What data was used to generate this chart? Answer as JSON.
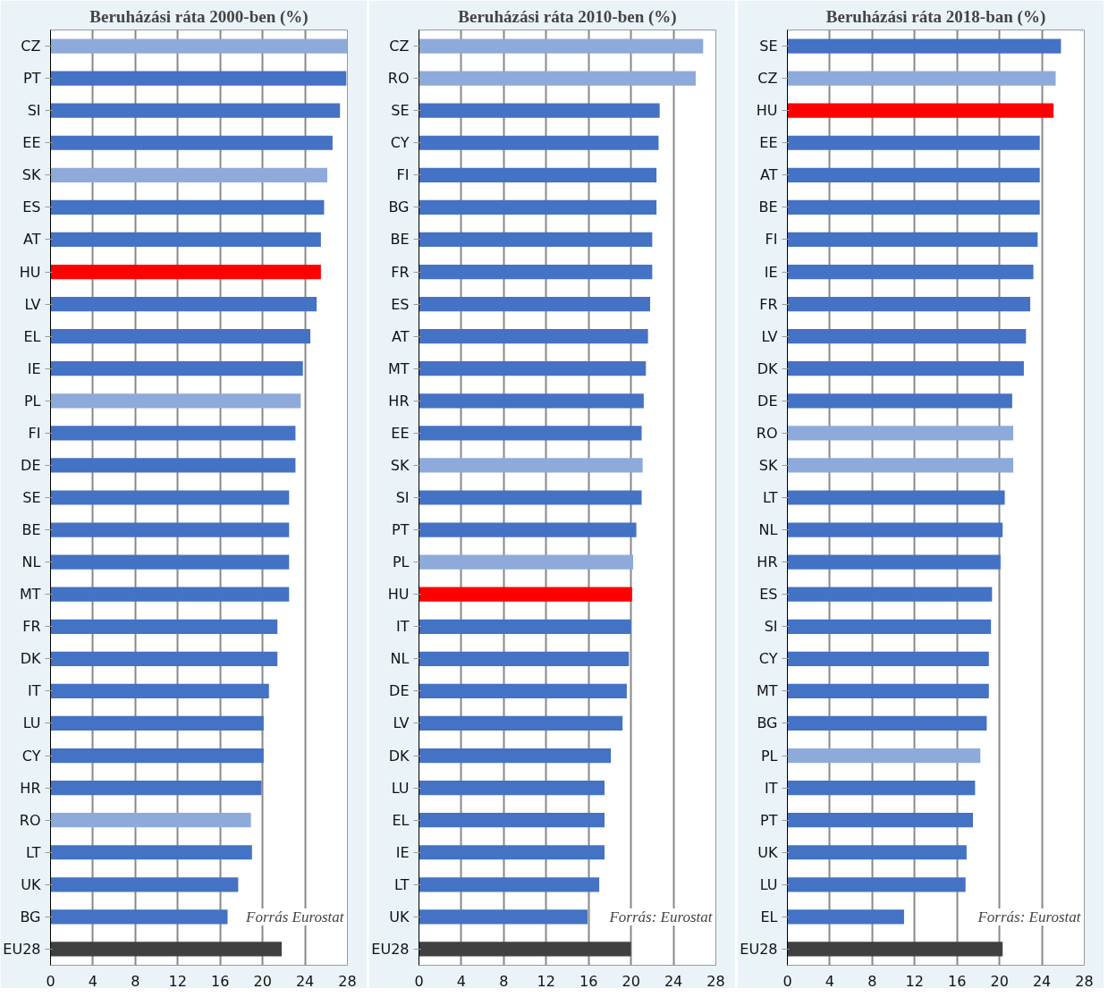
{
  "chart_data": [
    {
      "type": "bar",
      "orientation": "horizontal",
      "title": "Beruházási ráta 2000-ben (%)",
      "categories": [
        "CZ",
        "PT",
        "SI",
        "EE",
        "SK",
        "ES",
        "AT",
        "HU",
        "LV",
        "EL",
        "IE",
        "PL",
        "FI",
        "DE",
        "SE",
        "BE",
        "NL",
        "MT",
        "FR",
        "DK",
        "IT",
        "LU",
        "CY",
        "HR",
        "RO",
        "LT",
        "UK",
        "BG",
        "EU28"
      ],
      "values": [
        28.0,
        27.9,
        27.3,
        26.6,
        26.1,
        25.8,
        25.5,
        25.5,
        25.1,
        24.5,
        23.8,
        23.6,
        23.1,
        23.1,
        22.5,
        22.5,
        22.5,
        22.5,
        21.4,
        21.4,
        20.6,
        20.1,
        20.1,
        19.9,
        18.9,
        19.0,
        17.7,
        16.7,
        21.8
      ],
      "colors": [
        "#8eaadb",
        "#4472c4",
        "#4472c4",
        "#4472c4",
        "#8eaadb",
        "#4472c4",
        "#4472c4",
        "#ff0000",
        "#4472c4",
        "#4472c4",
        "#4472c4",
        "#8eaadb",
        "#4472c4",
        "#4472c4",
        "#4472c4",
        "#4472c4",
        "#4472c4",
        "#4472c4",
        "#4472c4",
        "#4472c4",
        "#4472c4",
        "#4472c4",
        "#4472c4",
        "#4472c4",
        "#8eaadb",
        "#4472c4",
        "#4472c4",
        "#4472c4",
        "#404040"
      ],
      "xlim": [
        0,
        28
      ],
      "xticks": [
        0,
        4,
        8,
        12,
        16,
        20,
        24,
        28
      ],
      "grid": "x",
      "annotations": [
        "Forrás Eurostat"
      ]
    },
    {
      "type": "bar",
      "orientation": "horizontal",
      "title": "Beruházási ráta 2010-ben (%)",
      "categories": [
        "CZ",
        "RO",
        "SE",
        "CY",
        "FI",
        "BG",
        "BE",
        "FR",
        "ES",
        "AT",
        "MT",
        "HR",
        "EE",
        "SK",
        "SI",
        "PT",
        "PL",
        "HU",
        "IT",
        "NL",
        "DE",
        "LV",
        "DK",
        "LU",
        "EL",
        "IE",
        "LT",
        "UK",
        "EU28"
      ],
      "values": [
        26.8,
        26.1,
        22.7,
        22.6,
        22.4,
        22.4,
        22.0,
        22.0,
        21.8,
        21.6,
        21.4,
        21.2,
        21.0,
        21.1,
        21.0,
        20.5,
        20.2,
        20.1,
        20.0,
        19.8,
        19.6,
        19.2,
        18.1,
        17.5,
        17.5,
        17.5,
        17.0,
        15.9,
        20.0
      ],
      "colors": [
        "#8eaadb",
        "#8eaadb",
        "#4472c4",
        "#4472c4",
        "#4472c4",
        "#4472c4",
        "#4472c4",
        "#4472c4",
        "#4472c4",
        "#4472c4",
        "#4472c4",
        "#4472c4",
        "#4472c4",
        "#8eaadb",
        "#4472c4",
        "#4472c4",
        "#8eaadb",
        "#ff0000",
        "#4472c4",
        "#4472c4",
        "#4472c4",
        "#4472c4",
        "#4472c4",
        "#4472c4",
        "#4472c4",
        "#4472c4",
        "#4472c4",
        "#4472c4",
        "#404040"
      ],
      "xlim": [
        0,
        28
      ],
      "xticks": [
        0,
        4,
        8,
        12,
        16,
        20,
        24,
        28
      ],
      "grid": "x",
      "annotations": [
        "Forrás: Eurostat"
      ]
    },
    {
      "type": "bar",
      "orientation": "horizontal",
      "title": "Beruházási ráta 2018-ban (%)",
      "categories": [
        "SE",
        "CZ",
        "HU",
        "EE",
        "AT",
        "BE",
        "FI",
        "IE",
        "FR",
        "LV",
        "DK",
        "DE",
        "RO",
        "SK",
        "LT",
        "NL",
        "HR",
        "ES",
        "SI",
        "CY",
        "MT",
        "BG",
        "PL",
        "IT",
        "PT",
        "UK",
        "LU",
        "EL",
        "EU28"
      ],
      "values": [
        25.8,
        25.3,
        25.1,
        23.8,
        23.8,
        23.8,
        23.6,
        23.2,
        22.9,
        22.5,
        22.3,
        21.2,
        21.3,
        21.3,
        20.5,
        20.3,
        20.1,
        19.3,
        19.2,
        19.0,
        19.0,
        18.8,
        18.2,
        17.7,
        17.5,
        16.9,
        16.8,
        11.0,
        20.3
      ],
      "colors": [
        "#4472c4",
        "#8eaadb",
        "#ff0000",
        "#4472c4",
        "#4472c4",
        "#4472c4",
        "#4472c4",
        "#4472c4",
        "#4472c4",
        "#4472c4",
        "#4472c4",
        "#4472c4",
        "#8eaadb",
        "#8eaadb",
        "#4472c4",
        "#4472c4",
        "#4472c4",
        "#4472c4",
        "#4472c4",
        "#4472c4",
        "#4472c4",
        "#4472c4",
        "#8eaadb",
        "#4472c4",
        "#4472c4",
        "#4472c4",
        "#4472c4",
        "#4472c4",
        "#404040"
      ],
      "xlim": [
        0,
        28
      ],
      "xticks": [
        0,
        4,
        8,
        12,
        16,
        20,
        24,
        28
      ],
      "grid": "x",
      "annotations": [
        "Forrás: Eurostat"
      ]
    }
  ]
}
